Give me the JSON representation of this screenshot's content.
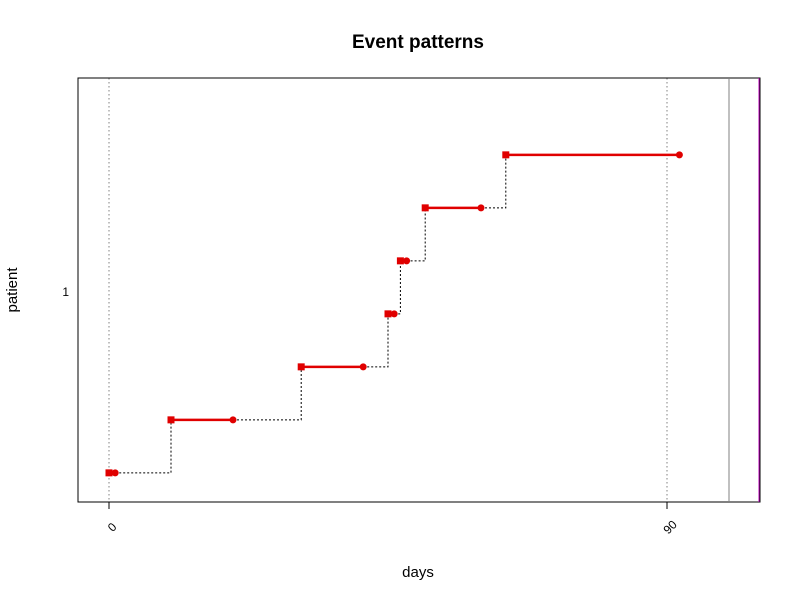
{
  "chart_data": {
    "type": "line",
    "title": "Event patterns",
    "xlabel": "days",
    "ylabel": "patient",
    "x_ticks": [
      0,
      90
    ],
    "y_ticks": [
      "1"
    ],
    "xlim": [
      -5,
      105
    ],
    "xlim_inner": [
      -5,
      100
    ],
    "ylim": [
      0.45,
      8.45
    ],
    "colors": {
      "event_line": "#e00000",
      "connector": "#000000",
      "gridline": "#808080",
      "frame": "#000000",
      "boundary": "#c000c0"
    },
    "series": [
      {
        "segments": [
          {
            "start": 0,
            "end": 1,
            "level": 1
          },
          {
            "start": 10,
            "end": 20,
            "level": 2
          },
          {
            "start": 31,
            "end": 41,
            "level": 3
          },
          {
            "start": 45,
            "end": 46,
            "level": 4
          },
          {
            "start": 47,
            "end": 48,
            "level": 5
          },
          {
            "start": 51,
            "end": 60,
            "level": 6
          },
          {
            "start": 64,
            "end": 92,
            "level": 7
          }
        ]
      }
    ]
  }
}
